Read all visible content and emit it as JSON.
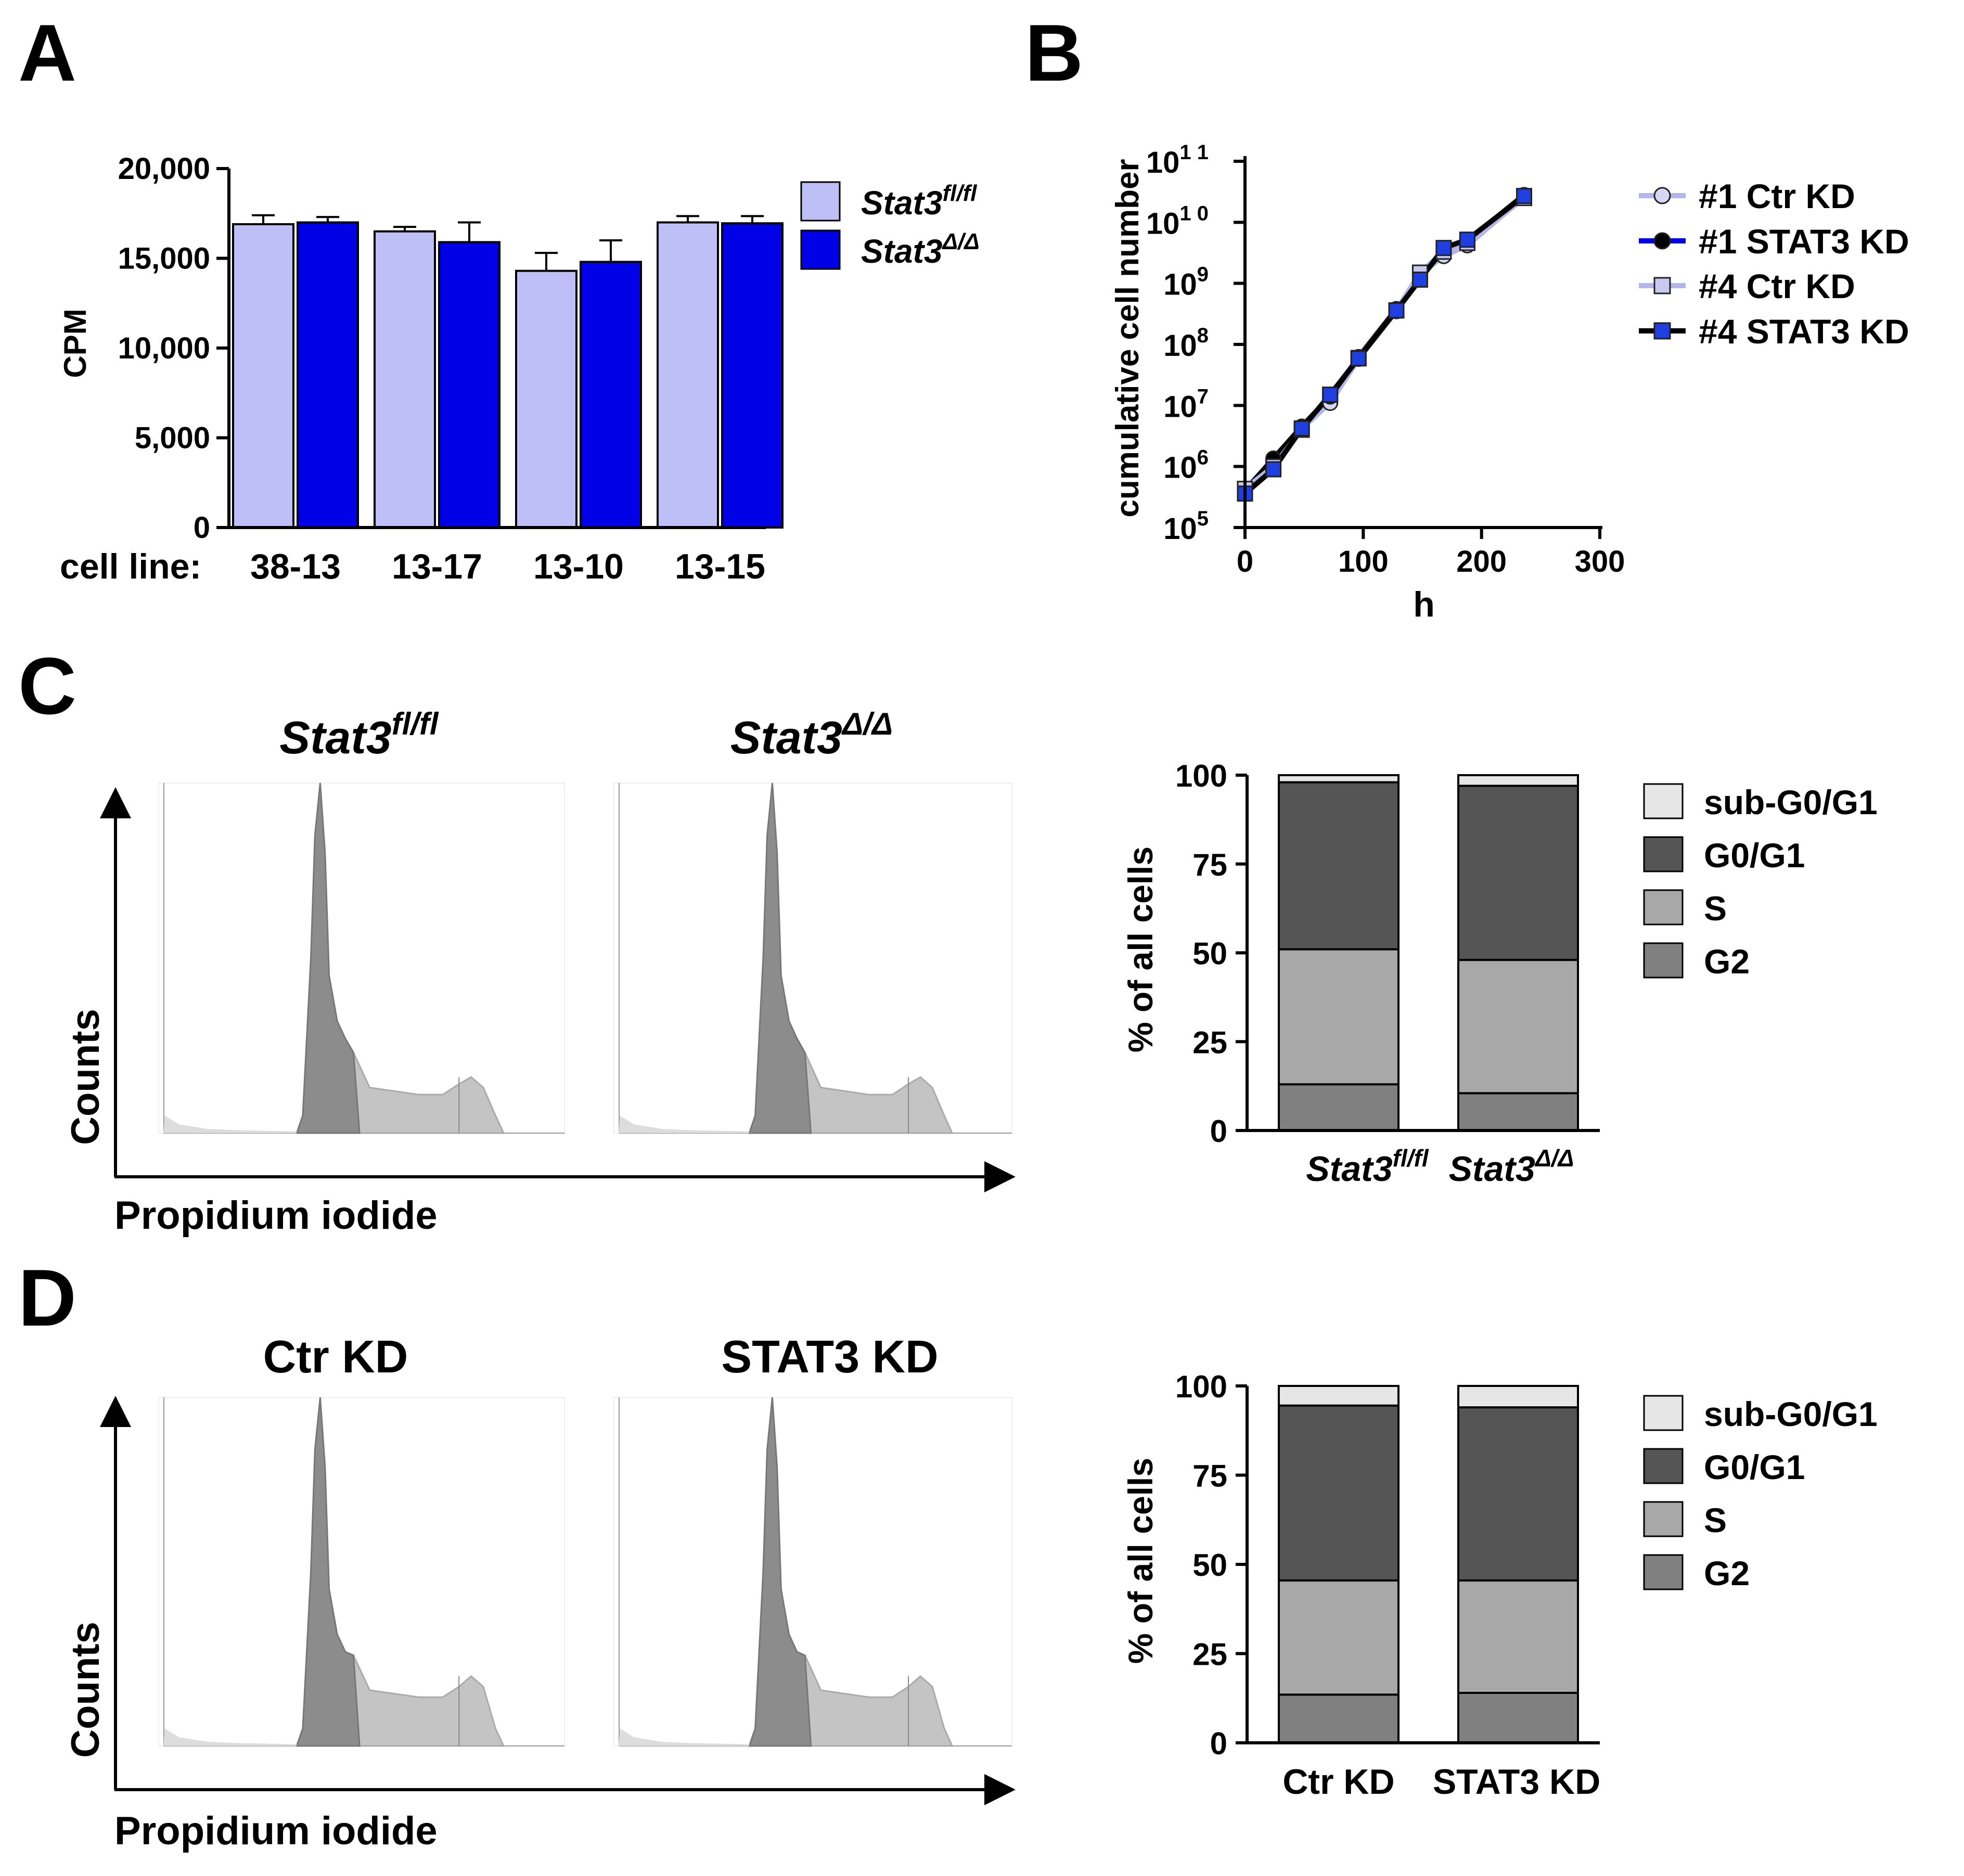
{
  "panel_labels": {
    "a": "A",
    "b": "B",
    "c": "C",
    "d": "D"
  },
  "colors": {
    "fl_bar": "#bfbff7",
    "delta_bar": "#0000e6",
    "sub_g0g1": "#e6e6e6",
    "g0g1": "#555555",
    "s": "#a8a8a8",
    "g2": "#808080",
    "hist_dark": "#8c8c8c",
    "hist_light": "#c4c4c4",
    "ctr_line": "#b5b5ea",
    "stat3_line": "#000000",
    "marker_blue": "#1f3fe0"
  },
  "histograms": {
    "c": {
      "titles": {
        "left": {
          "base": "Stat3",
          "sup": "fl/fl"
        },
        "right": {
          "base": "Stat3",
          "sup": "Δ/Δ"
        }
      },
      "ylabel": "Counts",
      "xlabel": "Propidium iodide"
    },
    "d": {
      "titles": {
        "left": "Ctr KD",
        "right": "STAT3 KD"
      },
      "ylabel": "Counts",
      "xlabel": "Propidium iodide"
    }
  },
  "chart_data": [
    {
      "id": "A",
      "type": "bar",
      "title": "",
      "ylabel": "CPM",
      "category_prefix": "cell line:",
      "categories": [
        "38-13",
        "13-17",
        "13-10",
        "13-15"
      ],
      "ylim": [
        0,
        20000
      ],
      "yticks": [
        {
          "v": 0,
          "label": "0"
        },
        {
          "v": 5000,
          "label": "5,000"
        },
        {
          "v": 10000,
          "label": "10,000"
        },
        {
          "v": 15000,
          "label": "15,000"
        },
        {
          "v": 20000,
          "label": "20,000"
        }
      ],
      "series": [
        {
          "name": "Stat3",
          "name_sup": "fl/fl",
          "values": [
            16900,
            16500,
            14300,
            17000
          ],
          "errors": [
            500,
            250,
            1000,
            350
          ]
        },
        {
          "name": "Stat3",
          "name_sup": "Δ/Δ",
          "values": [
            17000,
            15900,
            14800,
            16950
          ],
          "errors": [
            300,
            1100,
            1200,
            400
          ]
        }
      ]
    },
    {
      "id": "B",
      "type": "line",
      "yscale": "log",
      "xlabel": "h",
      "ylabel": "cumulative cell number",
      "xlim": [
        0,
        300
      ],
      "ylim_exp": [
        5,
        11
      ],
      "xticks": [
        {
          "v": 0,
          "label": "0"
        },
        {
          "v": 100,
          "label": "100"
        },
        {
          "v": 200,
          "label": "200"
        },
        {
          "v": 300,
          "label": "300"
        }
      ],
      "yticks": [
        {
          "exp": 5,
          "base": "10",
          "sup": "5"
        },
        {
          "exp": 6,
          "base": "10",
          "sup": "6"
        },
        {
          "exp": 7,
          "base": "10",
          "sup": "7"
        },
        {
          "exp": 8,
          "base": "10",
          "sup": "8"
        },
        {
          "exp": 9,
          "base": "10",
          "sup": "9"
        },
        {
          "exp": 10,
          "base": "10",
          "sup": "1 0"
        },
        {
          "exp": 11,
          "base": "10",
          "sup": "1 1"
        }
      ],
      "series": [
        {
          "name": "#1 Ctr KD",
          "marker": "circle",
          "x": [
            0,
            24,
            48,
            72,
            96,
            128,
            148,
            168,
            188,
            236
          ],
          "y": [
            420000.0,
            1300000.0,
            4200000.0,
            11000000.0,
            58000000.0,
            350000000.0,
            1400000000.0,
            2800000000.0,
            4200000000.0,
            26000000000.0
          ]
        },
        {
          "name": "#1 STAT3 KD",
          "marker": "circle",
          "x": [
            0,
            24,
            48,
            72,
            96,
            128,
            148,
            168,
            188,
            236
          ],
          "y": [
            400000.0,
            1350000.0,
            4500000.0,
            14000000.0,
            62000000.0,
            380000000.0,
            1200000000.0,
            3600000000.0,
            5000000000.0,
            28000000000.0
          ]
        },
        {
          "name": "#4 Ctr KD",
          "marker": "square",
          "x": [
            0,
            24,
            48,
            72,
            96,
            128,
            148,
            168,
            188,
            236
          ],
          "y": [
            430000.0,
            1000000.0,
            4000000.0,
            15000000.0,
            60000000.0,
            360000000.0,
            1500000000.0,
            3300000000.0,
            4600000000.0,
            25000000000.0
          ]
        },
        {
          "name": "#4 STAT3 KD",
          "marker": "square",
          "x": [
            0,
            24,
            48,
            72,
            96,
            128,
            148,
            168,
            188,
            236
          ],
          "y": [
            360000.0,
            900000.0,
            4200000.0,
            15000000.0,
            59000000.0,
            360000000.0,
            1150000000.0,
            3800000000.0,
            5200000000.0,
            27000000000.0
          ]
        }
      ]
    },
    {
      "id": "C",
      "type": "bar",
      "stacked": true,
      "ylabel": "% of all cells",
      "ylim": [
        0,
        100
      ],
      "yticks": [
        0,
        25,
        50,
        75,
        100
      ],
      "categories": [
        {
          "base": "Stat3",
          "sup": "fl/fl"
        },
        {
          "base": "Stat3",
          "sup": "Δ/Δ"
        }
      ],
      "series": [
        {
          "name": "G2",
          "values": [
            13,
            10.5
          ]
        },
        {
          "name": "S",
          "values": [
            38,
            37.5
          ]
        },
        {
          "name": "G0/G1",
          "values": [
            47,
            49
          ]
        },
        {
          "name": "sub-G0/G1",
          "values": [
            2,
            3
          ]
        }
      ],
      "legend_order": [
        "sub-G0/G1",
        "G0/G1",
        "S",
        "G2"
      ]
    },
    {
      "id": "D",
      "type": "bar",
      "stacked": true,
      "ylabel": "% of all cells",
      "ylim": [
        0,
        100
      ],
      "yticks": [
        0,
        25,
        50,
        75,
        100
      ],
      "categories": [
        "Ctr KD",
        "STAT3 KD"
      ],
      "series": [
        {
          "name": "G2",
          "values": [
            13.5,
            14
          ]
        },
        {
          "name": "S",
          "values": [
            32,
            31.5
          ]
        },
        {
          "name": "G0/G1",
          "values": [
            49,
            48.5
          ]
        },
        {
          "name": "sub-G0/G1",
          "values": [
            5.5,
            6
          ]
        }
      ],
      "legend_order": [
        "sub-G0/G1",
        "G0/G1",
        "S",
        "G2"
      ]
    }
  ]
}
